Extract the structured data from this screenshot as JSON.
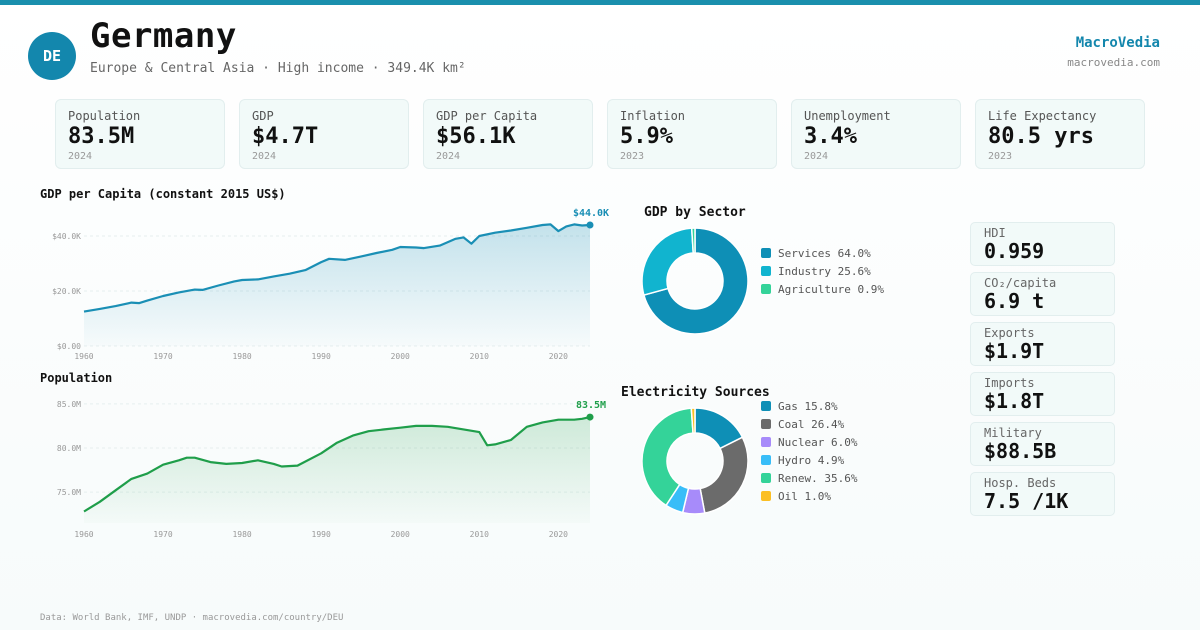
{
  "header": {
    "badge": "DE",
    "title": "Germany",
    "subtitle": "Europe & Central Asia · High income · 349.4K km²",
    "brand": "MacroVedia",
    "brand_url": "macrovedia.com"
  },
  "stats": [
    {
      "label": "Population",
      "value": "83.5M",
      "year": "2024"
    },
    {
      "label": "GDP",
      "value": "$4.7T",
      "year": "2024"
    },
    {
      "label": "GDP per Capita",
      "value": "$56.1K",
      "year": "2024"
    },
    {
      "label": "Inflation",
      "value": "5.9%",
      "year": "2023"
    },
    {
      "label": "Unemployment",
      "value": "3.4%",
      "year": "2024"
    },
    {
      "label": "Life Expectancy",
      "value": "80.5 yrs",
      "year": "2023"
    }
  ],
  "side_cards": [
    {
      "label": "HDI",
      "value": "0.959"
    },
    {
      "label": "CO₂/capita",
      "value": "6.9 t"
    },
    {
      "label": "Exports",
      "value": "$1.9T"
    },
    {
      "label": "Imports",
      "value": "$1.8T"
    },
    {
      "label": "Military",
      "value": "$88.5B"
    },
    {
      "label": "Hosp. Beds",
      "value": "7.5 /1K"
    }
  ],
  "colors": {
    "accent": "#1387ad",
    "gdp_line": "#1a8fb5",
    "pop_line": "#1f9e4a"
  },
  "footer": "Data: World Bank, IMF, UNDP · macrovedia.com/country/DEU",
  "chart_data": [
    {
      "type": "area",
      "title": "GDP per Capita (constant 2015 US$)",
      "end_label": "$44.0K",
      "x_ticks": [
        "1960",
        "1970",
        "1980",
        "1990",
        "2000",
        "2010",
        "2020"
      ],
      "y_ticks": [
        "$0.00",
        "$20.0K",
        "$40.0K"
      ],
      "ylim": [
        0,
        44000
      ],
      "xlim": [
        1960,
        2024
      ],
      "x": [
        1960,
        1962,
        1964,
        1966,
        1967,
        1968,
        1970,
        1972,
        1974,
        1975,
        1977,
        1979,
        1980,
        1982,
        1984,
        1986,
        1988,
        1990,
        1991,
        1993,
        1995,
        1997,
        1999,
        2000,
        2002,
        2003,
        2005,
        2007,
        2008,
        2009,
        2010,
        2012,
        2014,
        2016,
        2018,
        2019,
        2020,
        2021,
        2022,
        2023,
        2024
      ],
      "y": [
        12500,
        13500,
        14500,
        15800,
        15600,
        16500,
        18200,
        19500,
        20500,
        20400,
        22000,
        23500,
        24000,
        24200,
        25300,
        26300,
        27600,
        30500,
        31700,
        31300,
        32500,
        33800,
        35000,
        36000,
        35800,
        35600,
        36500,
        39000,
        39500,
        37200,
        40000,
        41200,
        42000,
        43000,
        44000,
        44200,
        41800,
        43500,
        44200,
        43800,
        44000
      ]
    },
    {
      "type": "area",
      "title": "Population",
      "end_label": "83.5M",
      "x_ticks": [
        "1960",
        "1970",
        "1980",
        "1990",
        "2000",
        "2010",
        "2020"
      ],
      "y_ticks": [
        "75.0M",
        "80.0M",
        "85.0M"
      ],
      "ylim": [
        71500,
        86000
      ],
      "xlim": [
        1960,
        2024
      ],
      "x": [
        1960,
        1962,
        1964,
        1966,
        1968,
        1970,
        1972,
        1973,
        1974,
        1976,
        1978,
        1980,
        1982,
        1984,
        1985,
        1987,
        1990,
        1992,
        1994,
        1996,
        1998,
        2000,
        2002,
        2004,
        2006,
        2008,
        2010,
        2011,
        2012,
        2014,
        2016,
        2018,
        2020,
        2022,
        2023,
        2024
      ],
      "y": [
        72800,
        73900,
        75200,
        76500,
        77100,
        78100,
        78600,
        78900,
        78900,
        78400,
        78200,
        78300,
        78600,
        78200,
        77900,
        78000,
        79400,
        80600,
        81400,
        81900,
        82100,
        82300,
        82500,
        82500,
        82400,
        82100,
        81800,
        80300,
        80400,
        80900,
        82400,
        82900,
        83200,
        83200,
        83300,
        83500
      ]
    },
    {
      "type": "pie",
      "title": "GDP by Sector",
      "labels": [
        "Services",
        "Industry",
        "Agriculture"
      ],
      "values": [
        64.0,
        25.6,
        0.9
      ],
      "colors": [
        "#0e8fb6",
        "#11b4cf",
        "#34d399"
      ],
      "legend": [
        "Services 64.0%",
        "Industry 25.6%",
        "Agriculture 0.9%"
      ]
    },
    {
      "type": "pie",
      "title": "Electricity Sources",
      "labels": [
        "Gas",
        "Coal",
        "Nuclear",
        "Hydro",
        "Renew.",
        "Oil"
      ],
      "values": [
        15.8,
        26.4,
        6.0,
        4.9,
        35.6,
        1.0
      ],
      "colors": [
        "#0e8fb6",
        "#6b6b6b",
        "#a78bfa",
        "#38bdf8",
        "#34d399",
        "#fbbf24"
      ],
      "legend": [
        "Gas 15.8%",
        "Coal 26.4%",
        "Nuclear 6.0%",
        "Hydro 4.9%",
        "Renew. 35.6%",
        "Oil 1.0%"
      ]
    }
  ]
}
